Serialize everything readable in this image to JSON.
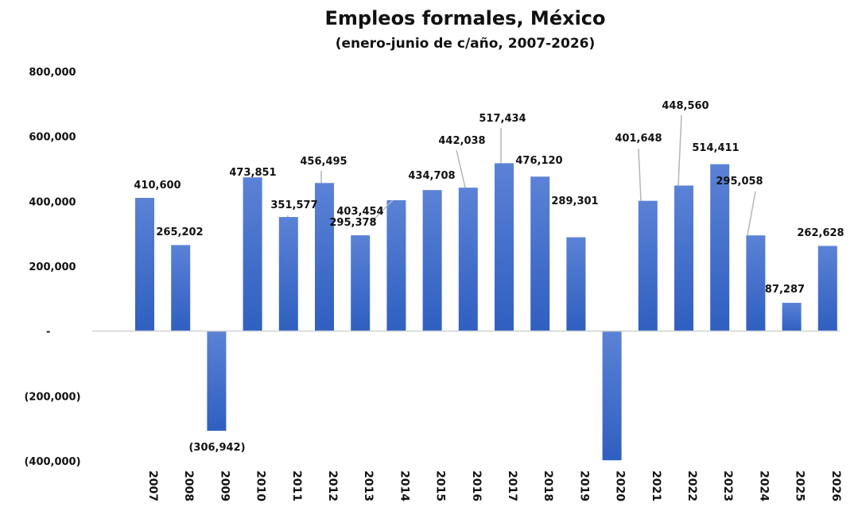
{
  "chart_data": {
    "type": "bar",
    "title": "Empleos formales, México",
    "subtitle": "(enero-junio de c/año, 2007-2026)",
    "xlabel": "",
    "ylabel": "",
    "ylim": [
      -400000,
      800000
    ],
    "grid": false,
    "legend": "none",
    "bar_color_top": "#5b82d6",
    "bar_color_bottom": "#2f5fc0",
    "axis_color": "#d0d0d0",
    "yticks": [
      {
        "value": 800000,
        "label": "800,000"
      },
      {
        "value": 600000,
        "label": "600,000"
      },
      {
        "value": 400000,
        "label": "400,000"
      },
      {
        "value": 200000,
        "label": "200,000"
      },
      {
        "value": 0,
        "label": "-"
      },
      {
        "value": -200000,
        "label": "(200,000)"
      },
      {
        "value": -400000,
        "label": "(400,000)"
      }
    ],
    "categories": [
      "2007",
      "2008",
      "2009",
      "2010",
      "2011",
      "2012",
      "2013",
      "2014",
      "2015",
      "2016",
      "2017",
      "2018",
      "2019",
      "2020",
      "2021",
      "2022",
      "2023",
      "2024",
      "2025",
      "2026"
    ],
    "values": [
      410600,
      265202,
      -306942,
      473851,
      351577,
      456495,
      295378,
      403454,
      434708,
      442038,
      517434,
      476120,
      289301,
      -398000,
      401648,
      448560,
      514411,
      295058,
      87287,
      262628
    ],
    "data_labels": [
      "410,600",
      "265,202",
      "(306,942)",
      "473,851",
      "351,577",
      "456,495",
      "295,378",
      "403,454",
      "434,708",
      "442,038",
      "517,434",
      "476,120",
      "289,301",
      "",
      "401,648",
      "448,560",
      "514,411",
      "295,058",
      "87,287",
      "262,628"
    ]
  }
}
